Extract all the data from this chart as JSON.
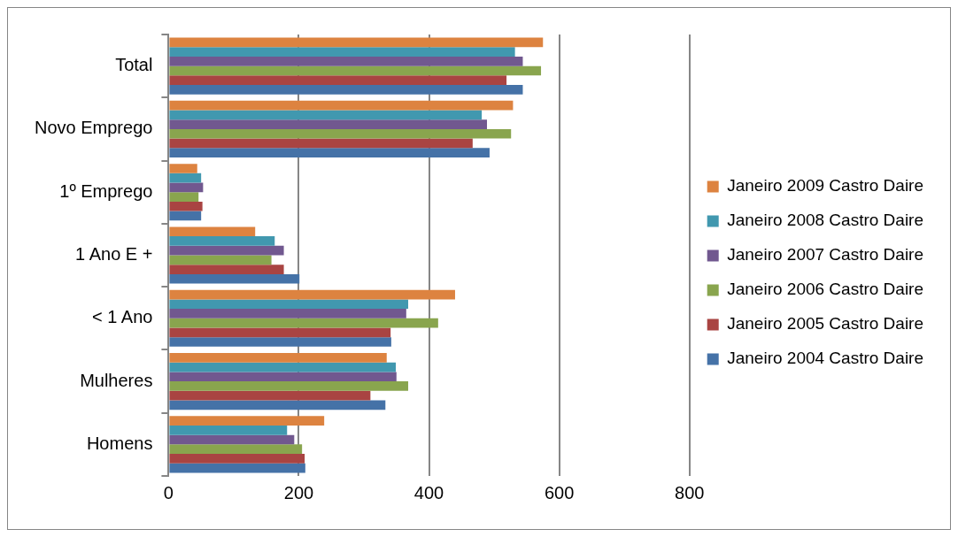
{
  "chart_data": {
    "type": "bar",
    "orientation": "horizontal",
    "categories": [
      "Total",
      "Novo Emprego",
      "1º Emprego",
      "1 Ano E +",
      "< 1 Ano",
      "Mulheres",
      "Homens"
    ],
    "series": [
      {
        "name": "Janeiro 2009 Castro Daire",
        "color": "#dd8340",
        "values": [
          575,
          529,
          44,
          133,
          440,
          335,
          239
        ]
      },
      {
        "name": "Janeiro 2008 Castro Daire",
        "color": "#4198af",
        "values": [
          532,
          481,
          50,
          163,
          368,
          349,
          182
        ]
      },
      {
        "name": "Janeiro 2007 Castro Daire",
        "color": "#71588f",
        "values": [
          544,
          489,
          53,
          177,
          365,
          350,
          193
        ]
      },
      {
        "name": "Janeiro 2006 Castro Daire",
        "color": "#89a54e",
        "values": [
          572,
          526,
          46,
          158,
          414,
          368,
          205
        ]
      },
      {
        "name": "Janeiro 2005 Castro Daire",
        "color": "#a94442",
        "values": [
          519,
          467,
          52,
          177,
          341,
          310,
          209
        ]
      },
      {
        "name": "Janeiro 2004 Castro Daire",
        "color": "#4572a7",
        "values": [
          544,
          493,
          50,
          201,
          342,
          333,
          210
        ]
      }
    ],
    "xlim": [
      0,
      800
    ],
    "xticks": [
      0,
      200,
      400,
      600,
      800
    ],
    "grid": "x",
    "legend": "right"
  }
}
